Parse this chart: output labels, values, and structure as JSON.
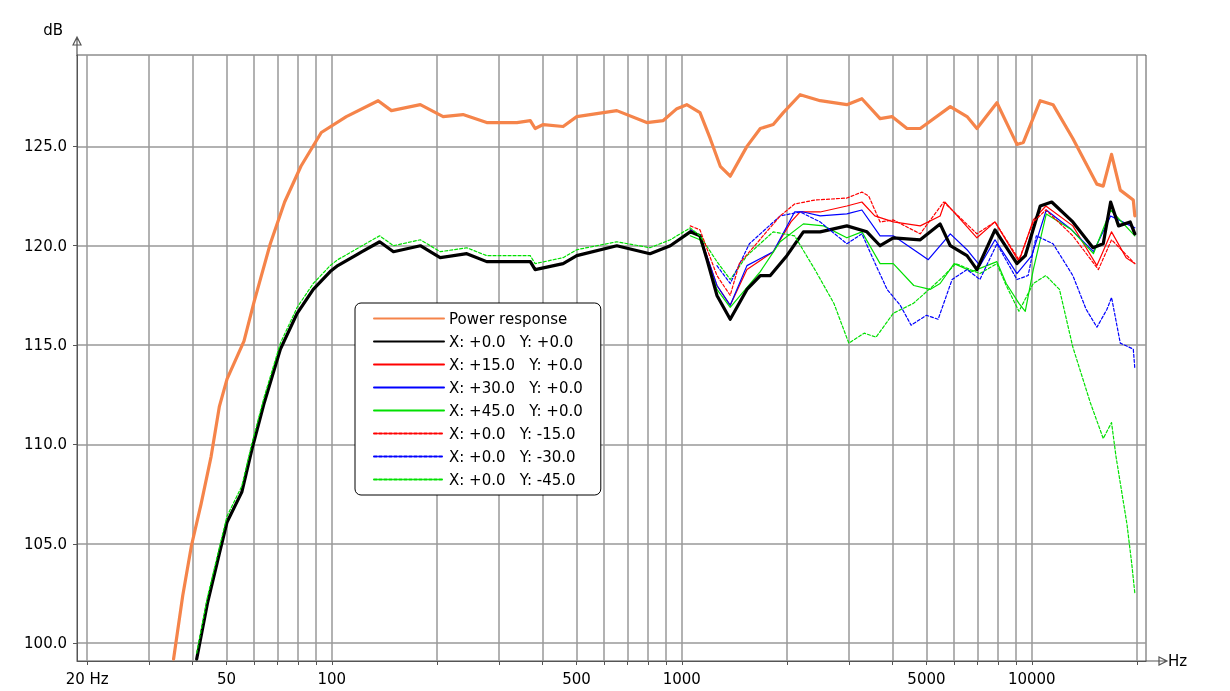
{
  "chart_data": {
    "type": "line",
    "xlabel": "Hz",
    "ylabel": "dB",
    "log": "x",
    "grid": true,
    "legend": "left",
    "marker": "none",
    "line_style": "solid",
    "xlim": [
      18.7,
      21200
    ],
    "ylim": [
      99.1,
      129.6
    ],
    "xticks": [
      {
        "value": 20,
        "label": "20 Hz"
      },
      {
        "value": 30,
        "label": null
      },
      {
        "value": 40,
        "label": null
      },
      50,
      {
        "value": 60,
        "label": null
      },
      {
        "value": 70,
        "label": null
      },
      {
        "value": 80,
        "label": null
      },
      {
        "value": 90,
        "label": null
      },
      100,
      {
        "value": 200,
        "label": null
      },
      {
        "value": 300,
        "label": null
      },
      {
        "value": 400,
        "label": null
      },
      500,
      {
        "value": 600,
        "label": null
      },
      {
        "value": 700,
        "label": null
      },
      {
        "value": 800,
        "label": null
      },
      {
        "value": 900,
        "label": null
      },
      1000,
      {
        "value": 2000,
        "label": null
      },
      {
        "value": 3000,
        "label": null
      },
      {
        "value": 4000,
        "label": null
      },
      5000,
      {
        "value": 6000,
        "label": null
      },
      {
        "value": 7000,
        "label": null
      },
      {
        "value": 8000,
        "label": null
      },
      {
        "value": 9000,
        "label": null
      },
      10000,
      {
        "value": 20000,
        "label": null
      }
    ],
    "yticks": [
      {
        "value": 100,
        "label": "100.0"
      },
      {
        "value": 105,
        "label": "105.0"
      },
      {
        "value": 110,
        "label": "110.0"
      },
      {
        "value": 115,
        "label": "115.0"
      },
      {
        "value": 120,
        "label": "120.0"
      },
      {
        "value": 125,
        "label": "125.0"
      }
    ],
    "series": [
      {
        "name": "Power response",
        "color": "#f5844a",
        "x": [
          35.3,
          37.5,
          39.7,
          42.3,
          45.2,
          47.7,
          50.2,
          56.1,
          60,
          66.7,
          73.3,
          81.6,
          93.3,
          110,
          135.6,
          148,
          179,
          208,
          237,
          277,
          338,
          369,
          381,
          402,
          458,
          501,
          652,
          794,
          885,
          968,
          1033,
          1127,
          1205,
          1288,
          1375,
          1535,
          1676,
          1825,
          1950,
          2178,
          2485,
          2962,
          3270,
          3686,
          3985,
          4400,
          4800,
          5850,
          6530,
          6970,
          7950,
          9070,
          9460,
          10570,
          11500,
          13100,
          15350,
          16000,
          16900,
          17900,
          19500,
          19700
        ],
        "values": [
          99.2,
          102.4,
          104.9,
          107.0,
          109.4,
          111.9,
          113.3,
          115.2,
          117.2,
          120.1,
          122.2,
          124.0,
          125.7,
          126.5,
          127.3,
          126.8,
          127.1,
          126.5,
          126.6,
          126.2,
          126.2,
          126.3,
          125.9,
          126.1,
          126.0,
          126.5,
          126.8,
          126.2,
          126.3,
          126.9,
          127.1,
          126.7,
          125.4,
          124.0,
          123.5,
          125.0,
          125.9,
          126.1,
          126.7,
          127.6,
          127.3,
          127.1,
          127.4,
          126.4,
          126.5,
          125.9,
          125.9,
          127.0,
          126.5,
          125.9,
          127.2,
          125.1,
          125.2,
          127.3,
          127.1,
          125.4,
          123.1,
          123.0,
          124.6,
          122.8,
          122.3,
          121.5
        ]
      },
      {
        "name": "X: +0.0   Y: +0.0",
        "color": "#000000",
        "x": [
          41.1,
          44.1,
          47.7,
          50.2,
          55.3,
          59.2,
          64.1,
          71.3,
          79.6,
          88.5,
          98.9,
          104,
          122,
          137,
          150,
          179,
          204,
          243,
          277,
          369,
          381,
          458,
          501,
          652,
          811,
          927,
          1057,
          1127,
          1180,
          1260,
          1375,
          1535,
          1676,
          1790,
          1996,
          2225,
          2485,
          2962,
          3380,
          3686,
          4020,
          4800,
          5470,
          5850,
          6530,
          6970,
          7850,
          9070,
          9580,
          10570,
          11400,
          13100,
          14960,
          16000,
          16800,
          17700,
          19100,
          19700
        ],
        "values": [
          99.2,
          102.0,
          104.5,
          106.1,
          107.6,
          109.8,
          112.1,
          114.8,
          116.6,
          117.8,
          118.7,
          119.0,
          119.7,
          120.2,
          119.7,
          120.0,
          119.4,
          119.6,
          119.2,
          119.2,
          118.8,
          119.1,
          119.5,
          120.0,
          119.6,
          120.0,
          120.7,
          120.5,
          119.3,
          117.5,
          116.3,
          117.8,
          118.5,
          118.5,
          119.5,
          120.7,
          120.7,
          121.0,
          120.7,
          120.0,
          120.4,
          120.3,
          121.1,
          120.0,
          119.5,
          118.8,
          120.8,
          119.1,
          119.5,
          122.0,
          122.2,
          121.2,
          119.9,
          120.1,
          122.2,
          121.0,
          121.2,
          120.6
        ]
      },
      {
        "name": "X: +15.0   Y: +0.0",
        "color": "#ff0000",
        "x": [
          1057,
          1127,
          1260,
          1375,
          1535,
          1825,
          2050,
          2178,
          2485,
          2962,
          3270,
          3560,
          4020,
          4800,
          5470,
          5650,
          6970,
          7850,
          9190,
          10100,
          10970,
          13100,
          15350,
          16900,
          18600,
          19700
        ],
        "values": [
          120.8,
          120.5,
          118.0,
          117.0,
          118.8,
          119.7,
          121.2,
          121.7,
          121.7,
          122.0,
          122.2,
          121.5,
          121.2,
          121.0,
          121.5,
          122.2,
          120.4,
          121.2,
          119.2,
          121.3,
          122.0,
          121.0,
          119.0,
          120.7,
          119.4,
          119.1
        ]
      },
      {
        "name": "X: +30.0   Y: +0.0",
        "color": "#0000ff",
        "x": [
          1057,
          1127,
          1260,
          1375,
          1535,
          1825,
          2100,
          2225,
          2485,
          2962,
          3270,
          3686,
          4020,
          4600,
          5060,
          5850,
          6530,
          7110,
          7850,
          9070,
          10000,
          11000,
          13000,
          15000,
          16800,
          19700
        ],
        "values": [
          120.8,
          120.5,
          118.0,
          117.0,
          119.0,
          119.7,
          121.7,
          121.7,
          121.5,
          121.6,
          121.8,
          120.5,
          120.5,
          119.8,
          119.3,
          120.6,
          119.8,
          119.0,
          120.3,
          118.6,
          119.5,
          121.8,
          120.8,
          119.7,
          121.5,
          120.9
        ]
      },
      {
        "name": "X: +45.0   Y: +0.0",
        "color": "#00e000",
        "x": [
          1057,
          1127,
          1260,
          1375,
          1676,
          1910,
          2225,
          2540,
          2962,
          3270,
          3686,
          4020,
          4600,
          5120,
          5470,
          6000,
          6740,
          7950,
          8450,
          9190,
          9580,
          10100,
          11000,
          13000,
          15000,
          16800,
          19700
        ],
        "values": [
          120.5,
          120.3,
          117.8,
          116.9,
          118.7,
          120.2,
          121.1,
          121.0,
          120.4,
          120.7,
          119.1,
          119.1,
          118.0,
          117.8,
          118.1,
          119.1,
          118.7,
          119.2,
          118.1,
          117.1,
          116.7,
          118.8,
          121.6,
          120.8,
          119.6,
          121.8,
          120.5
        ]
      },
      {
        "name": "X: +0.0   Y: -15.0",
        "color": "#ff0000",
        "line_style": "dashed",
        "x": [
          1057,
          1127,
          1260,
          1375,
          1460,
          1910,
          2100,
          2400,
          2962,
          3270,
          3420,
          3686,
          4020,
          4800,
          5600,
          6970,
          7850,
          9190,
          10100,
          10970,
          13100,
          15500,
          16900,
          19700
        ],
        "values": [
          121.0,
          120.8,
          118.5,
          117.5,
          119.1,
          121.5,
          122.1,
          122.3,
          122.4,
          122.7,
          122.5,
          121.2,
          121.3,
          120.6,
          122.2,
          120.6,
          121.2,
          119.3,
          121.2,
          121.8,
          120.5,
          118.8,
          120.3,
          119.1
        ]
      },
      {
        "name": "X: +0.0   Y: -30.0",
        "color": "#0000ff",
        "line_style": "dashed",
        "x": [
          1260,
          1375,
          1560,
          1676,
          1910,
          2178,
          2485,
          2962,
          3270,
          3590,
          3860,
          4210,
          4520,
          5000,
          5400,
          5920,
          6530,
          7110,
          7950,
          9070,
          9760,
          10300,
          11500,
          13100,
          14300,
          15350,
          16400,
          16900,
          17900,
          19500,
          19700
        ],
        "values": [
          119.0,
          118.1,
          120.1,
          120.6,
          121.5,
          121.7,
          121.2,
          120.1,
          120.6,
          119.0,
          117.8,
          117.0,
          116.0,
          116.5,
          116.3,
          118.3,
          118.8,
          118.3,
          120.1,
          118.3,
          118.5,
          120.5,
          120.1,
          118.5,
          116.8,
          115.9,
          116.8,
          117.4,
          115.1,
          114.8,
          113.8
        ]
      },
      {
        "name": "X: +0.0   Y: -45.0",
        "color": "#00e000",
        "line_style": "dashed",
        "x": [
          41.1,
          44.1,
          47.7,
          50.2,
          55.3,
          59.2,
          64.1,
          71.3,
          79.6,
          88.5,
          98.9,
          104,
          122,
          137,
          150,
          179,
          204,
          243,
          277,
          369,
          381,
          458,
          501,
          652,
          811,
          927,
          1057,
          1127,
          1260,
          1375,
          1535,
          1825,
          2100,
          2400,
          2720,
          3000,
          3320,
          3590,
          4020,
          4590,
          5470,
          6070,
          7110,
          7950,
          8450,
          9190,
          10100,
          10970,
          12000,
          13100,
          14700,
          16000,
          16900,
          17400,
          18700,
          19300,
          19700
        ],
        "values": [
          99.5,
          102.3,
          104.8,
          106.4,
          107.9,
          110.1,
          112.4,
          115.1,
          116.9,
          118.1,
          119.0,
          119.3,
          120.0,
          120.5,
          120.0,
          120.3,
          119.7,
          119.9,
          119.5,
          119.5,
          119.1,
          119.4,
          119.8,
          120.2,
          119.9,
          120.3,
          120.9,
          120.5,
          119.2,
          118.3,
          119.5,
          120.7,
          120.5,
          118.8,
          117.1,
          115.1,
          115.6,
          115.4,
          116.6,
          117.1,
          118.3,
          119.1,
          118.6,
          119.1,
          118.0,
          116.7,
          118.1,
          118.5,
          117.8,
          114.9,
          112.1,
          110.3,
          111.1,
          109.4,
          106.0,
          104.0,
          102.5
        ]
      }
    ]
  }
}
